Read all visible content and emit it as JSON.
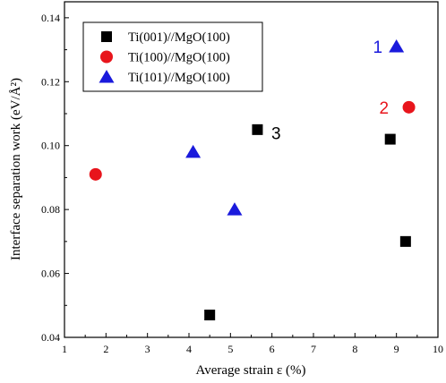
{
  "chart_data": {
    "type": "scatter",
    "xlabel": "Average strain ε (%)",
    "ylabel": "Interface separation work (eV/Å²)",
    "xlim": [
      1,
      10
    ],
    "ylim": [
      0.04,
      0.145
    ],
    "x_ticks": [
      "1",
      "2",
      "3",
      "4",
      "5",
      "6",
      "7",
      "8",
      "9",
      "10"
    ],
    "y_ticks": [
      "0.04",
      "0.06",
      "0.08",
      "0.10",
      "0.12",
      "0.14"
    ],
    "grid": false,
    "legend_position": "top-left",
    "series": [
      {
        "name": "Ti(001)//MgO(100)",
        "marker": "square",
        "color": "#000000",
        "points": [
          {
            "x": 4.5,
            "y": 0.047
          },
          {
            "x": 5.65,
            "y": 0.105
          },
          {
            "x": 8.85,
            "y": 0.102
          },
          {
            "x": 9.22,
            "y": 0.07
          }
        ]
      },
      {
        "name": "Ti(100)//MgO(100)",
        "marker": "circle",
        "color": "#e8151c",
        "points": [
          {
            "x": 1.75,
            "y": 0.091
          },
          {
            "x": 9.3,
            "y": 0.112
          }
        ]
      },
      {
        "name": "Ti(101)//MgO(100)",
        "marker": "triangle",
        "color": "#1a1adc",
        "points": [
          {
            "x": 4.1,
            "y": 0.098
          },
          {
            "x": 5.1,
            "y": 0.08
          },
          {
            "x": 9.0,
            "y": 0.131
          }
        ]
      }
    ],
    "annotations": [
      {
        "text": "1",
        "x": 8.55,
        "y": 0.131,
        "color": "#1a1adc"
      },
      {
        "text": "2",
        "x": 8.7,
        "y": 0.112,
        "color": "#e8151c"
      },
      {
        "text": "3",
        "x": 6.1,
        "y": 0.104,
        "color": "#000000"
      }
    ]
  }
}
